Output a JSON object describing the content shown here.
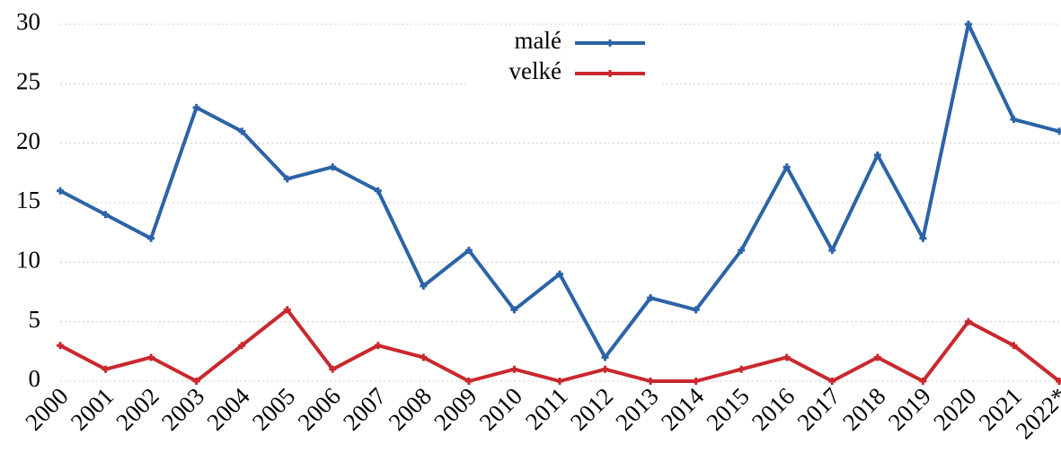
{
  "chart_data": {
    "type": "line",
    "categories": [
      "2000",
      "2001",
      "2002",
      "2003",
      "2004",
      "2005",
      "2006",
      "2007",
      "2008",
      "2009",
      "2010",
      "2011",
      "2012",
      "2013",
      "2014",
      "2015",
      "2016",
      "2017",
      "2018",
      "2019",
      "2020",
      "2021",
      "2022*"
    ],
    "series": [
      {
        "name": "malé",
        "color": "#2c63a6",
        "values": [
          16,
          14,
          12,
          23,
          21,
          17,
          18,
          16,
          8,
          11,
          6,
          9,
          2,
          7,
          6,
          11,
          18,
          11,
          19,
          12,
          30,
          22,
          21
        ]
      },
      {
        "name": "velké",
        "color": "#c9282d",
        "values": [
          3,
          1,
          2,
          0,
          3,
          6,
          1,
          3,
          2,
          0,
          1,
          0,
          1,
          0,
          0,
          1,
          2,
          0,
          2,
          0,
          5,
          3,
          0
        ]
      }
    ],
    "ylim": [
      0,
      30
    ],
    "yticks": [
      0,
      5,
      10,
      15,
      20,
      25,
      30
    ],
    "grid": true,
    "legend": "top"
  }
}
